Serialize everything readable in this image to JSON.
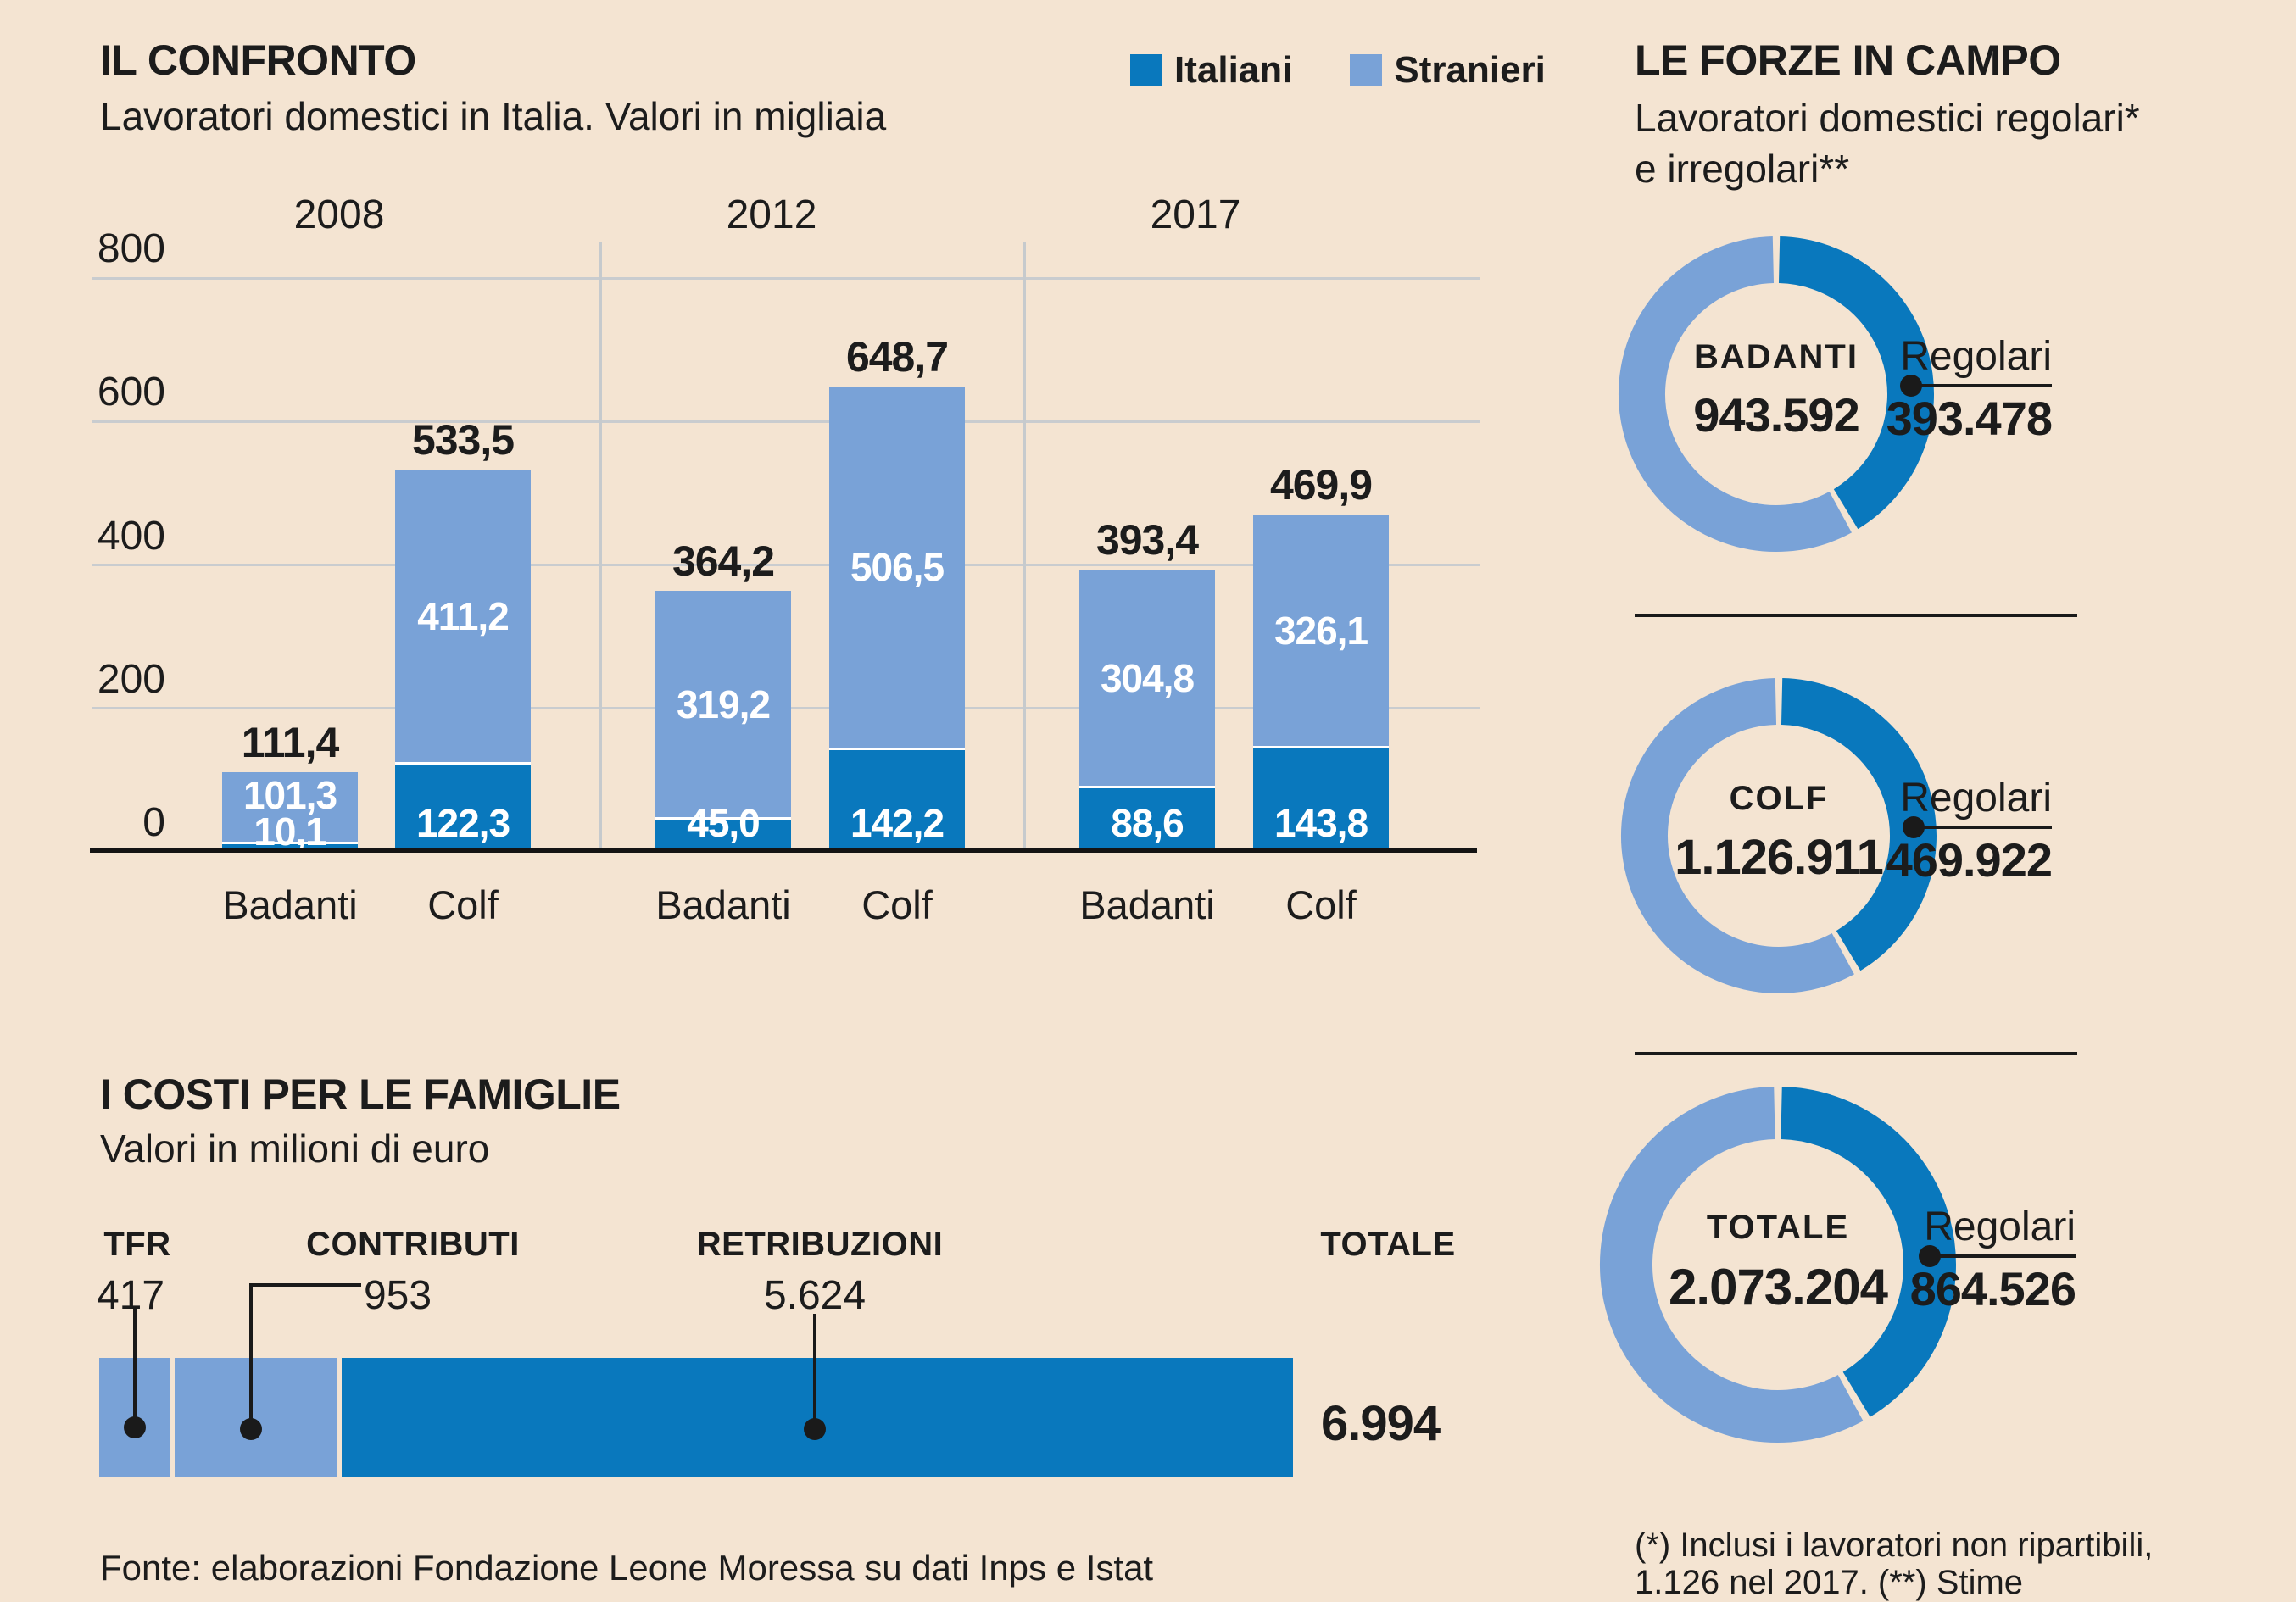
{
  "colors": {
    "background": "#f4e4d2",
    "dark_blue": "#0978bd",
    "light_blue": "#79a2d7",
    "grid": "#c9cccf",
    "axis_black": "#141414",
    "text": "#1c1c1c",
    "white_label": "#ffffff"
  },
  "chart_data": [
    {
      "id": "confronto",
      "type": "bar",
      "stacked": true,
      "title": "IL CONFRONTO",
      "subtitle": "Lavoratori domestici in Italia. Valori in migliaia",
      "unit": "migliaia",
      "groups": [
        "2008",
        "2012",
        "2017"
      ],
      "categories": [
        "Badanti",
        "Colf",
        "Badanti",
        "Colf",
        "Badanti",
        "Colf"
      ],
      "series": [
        {
          "name": "Italiani",
          "color_key": "dark_blue",
          "values": [
            10.1,
            122.3,
            45.0,
            142.2,
            88.6,
            143.8
          ],
          "labels": [
            "10,1",
            "122,3",
            "45,0",
            "142,2",
            "88,6",
            "143,8"
          ]
        },
        {
          "name": "Stranieri",
          "color_key": "light_blue",
          "values": [
            101.3,
            411.2,
            319.2,
            506.5,
            304.8,
            326.1
          ],
          "labels": [
            "101,3",
            "411,2",
            "319,2",
            "506,5",
            "304,8",
            "326,1"
          ]
        }
      ],
      "totals": {
        "values": [
          111.4,
          533.5,
          364.2,
          648.7,
          393.4,
          469.9
        ],
        "labels": [
          "111,4",
          "533,5",
          "364,2",
          "648,7",
          "393,4",
          "469,9"
        ]
      },
      "ylim": [
        0,
        800
      ],
      "yticks": [
        0,
        200,
        400,
        600,
        800
      ],
      "grid": true,
      "legend_position": "top-right"
    },
    {
      "id": "forze",
      "type": "pie",
      "title": "LE FORZE IN CAMPO",
      "subtitle_line1": "Lavoratori domestici regolari*",
      "subtitle_line2": "e irregolari**",
      "donuts": [
        {
          "label": "BADANTI",
          "total": 943592,
          "total_label": "943.592",
          "regolari": 393478,
          "regolari_label": "393.478",
          "callout": "Regolari"
        },
        {
          "label": "COLF",
          "total": 1126911,
          "total_label": "1.126.911",
          "regolari": 469922,
          "regolari_label": "469.922",
          "callout": "Regolari"
        },
        {
          "label": "TOTALE",
          "total": 2073204,
          "total_label": "2.073.204",
          "regolari": 864526,
          "regolari_label": "864.526",
          "callout": "Regolari"
        }
      ],
      "footnote_line1": "(*) Inclusi i lavoratori non ripartibili,",
      "footnote_line2": "1.126 nel 2017. (**) Stime"
    },
    {
      "id": "costi",
      "type": "bar",
      "horizontal": true,
      "stacked": true,
      "title": "I COSTI PER LE FAMIGLIE",
      "subtitle": "Valori in milioni di euro",
      "segments": [
        {
          "label": "TFR",
          "value": 417,
          "value_label": "417",
          "color_key": "light_blue"
        },
        {
          "label": "CONTRIBUTI",
          "value": 953,
          "value_label": "953",
          "color_key": "light_blue"
        },
        {
          "label": "RETRIBUZIONI",
          "value": 5624,
          "value_label": "5.624",
          "color_key": "dark_blue"
        }
      ],
      "total": {
        "label": "TOTALE",
        "value": 6994,
        "value_label": "6.994"
      }
    }
  ],
  "source": "Fonte: elaborazioni Fondazione Leone Moressa su dati Inps e Istat"
}
